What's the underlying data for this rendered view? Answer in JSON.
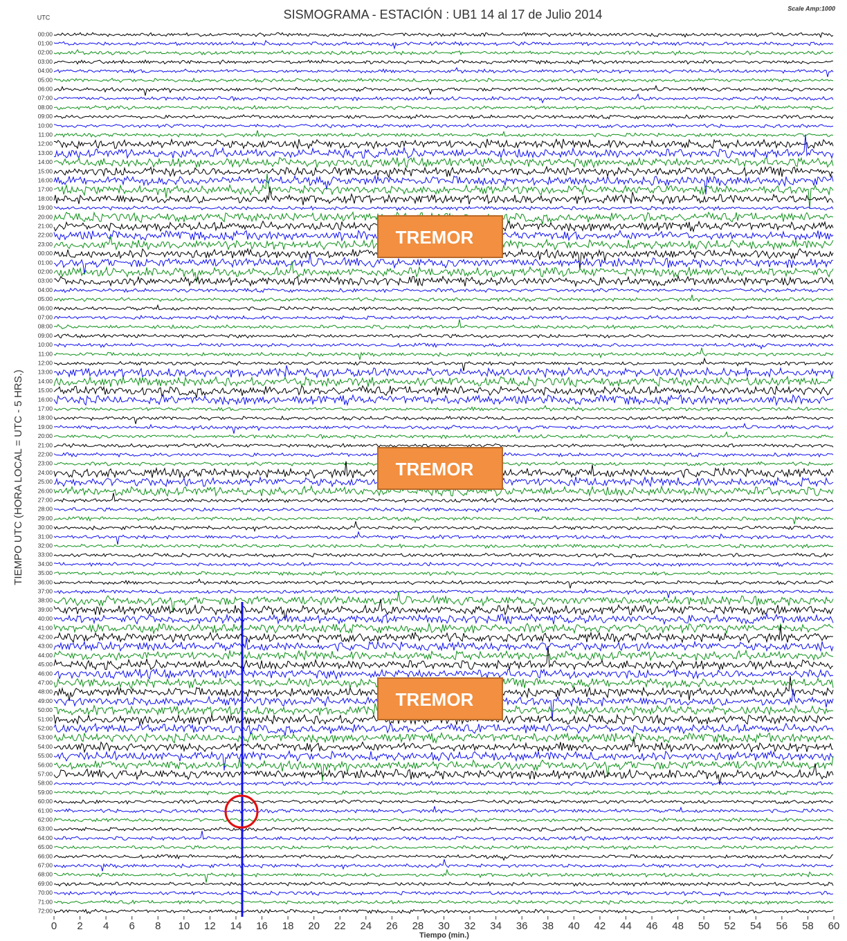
{
  "chart_data": {
    "type": "seismogram",
    "title": "SISMOGRAMA - ESTACIÓN : UB1 14 al 17 de Julio 2014",
    "corner_label": "UTC",
    "scale_label": "Scale Amp:1000",
    "y_label": "TIEMPO UTC (HORA LOCAL = UTC - 5 HRS.)",
    "x_label": "Tiempo (min.)",
    "xlim": [
      0,
      60
    ],
    "xticks": [
      0,
      2,
      4,
      6,
      8,
      10,
      12,
      14,
      16,
      18,
      20,
      22,
      24,
      26,
      28,
      30,
      32,
      34,
      36,
      38,
      40,
      42,
      44,
      46,
      48,
      50,
      52,
      54,
      56,
      58,
      60
    ],
    "trace_colors": [
      "#000000",
      "#1010ee",
      "#10901a"
    ],
    "categories": [
      "00:00",
      "01:00",
      "02:00",
      "03:00",
      "04:00",
      "05:00",
      "06:00",
      "07:00",
      "08:00",
      "09:00",
      "10:00",
      "11:00",
      "12:00",
      "13:00",
      "14:00",
      "15:00",
      "16:00",
      "17:00",
      "18:00",
      "19:00",
      "20:00",
      "21:00",
      "22:00",
      "23:00",
      "00:00",
      "01:00",
      "02:00",
      "03:00",
      "04:00",
      "05:00",
      "06:00",
      "07:00",
      "08:00",
      "09:00",
      "10:00",
      "11:00",
      "12:00",
      "13:00",
      "14:00",
      "15:00",
      "16:00",
      "17:00",
      "18:00",
      "19:00",
      "20:00",
      "21:00",
      "22:00",
      "23:00",
      "24:00",
      "25:00",
      "26:00",
      "27:00",
      "28:00",
      "29:00",
      "30:00",
      "31:00",
      "32:00",
      "33:00",
      "34:00",
      "35:00",
      "36:00",
      "37:00",
      "38:00",
      "39:00",
      "40:00",
      "41:00",
      "42:00",
      "43:00",
      "44:00",
      "45:00",
      "46:00",
      "47:00",
      "48:00",
      "49:00",
      "50:00",
      "51:00",
      "52:00",
      "53:00",
      "54:00",
      "55:00",
      "56:00",
      "57:00",
      "58:00",
      "59:00",
      "60:00",
      "61:00",
      "62:00",
      "63:00",
      "64:00",
      "65:00",
      "66:00",
      "67:00",
      "68:00",
      "69:00",
      "70:00",
      "71:00",
      "72:00"
    ],
    "annotations": [
      "TREMOR",
      "TREMOR",
      "TREMOR"
    ]
  }
}
